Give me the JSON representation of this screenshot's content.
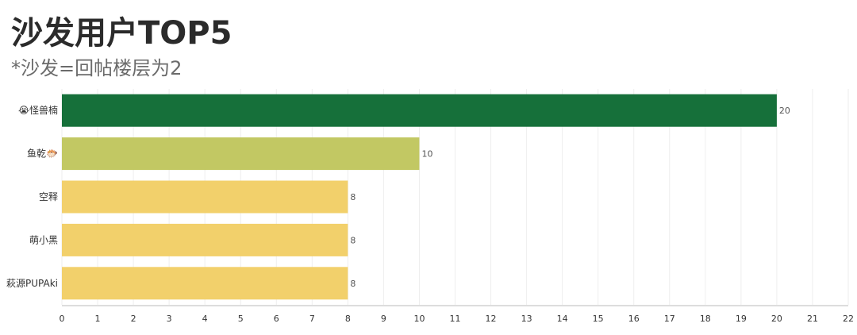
{
  "colors": {
    "top": "#16703a",
    "second": "#c2c863",
    "rest": "#f2d06b",
    "grid": "#eeeeee",
    "axis": "#bbbbbb"
  },
  "chart_data": {
    "type": "bar",
    "orientation": "horizontal",
    "title": "沙发用户TOP5",
    "subtitle": "*沙发=回帖楼层为2",
    "categories": [
      "😭怪兽楠",
      "鱼乾🐡",
      "空释",
      "萌小黑",
      "萩源PUPAki"
    ],
    "values": [
      20,
      10,
      8,
      8,
      8
    ],
    "xlim": [
      0,
      22
    ],
    "xticks": [
      0,
      1,
      2,
      3,
      4,
      5,
      6,
      7,
      8,
      9,
      10,
      11,
      12,
      13,
      14,
      15,
      16,
      17,
      18,
      19,
      20,
      21,
      22
    ],
    "grid": true,
    "legend": "none"
  }
}
